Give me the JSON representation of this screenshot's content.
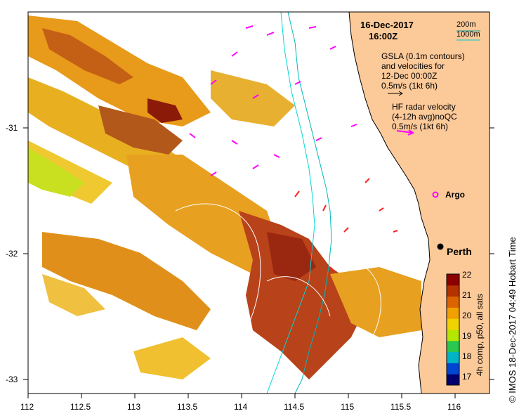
{
  "header": {
    "date": "16-Dec-2017",
    "time": "16:00Z"
  },
  "depth_legend": {
    "line1": "200m",
    "line2": "1000m",
    "color_200m": "#009999",
    "color_1000m": "#00cccc"
  },
  "gsla_legend": {
    "line1": "GSLA (0.1m contours)",
    "line2": "and velocities for",
    "line3": "12-Dec 00:00Z",
    "scale": "0.5m/s (1kt 6h)",
    "arrow_color": "#000000"
  },
  "hf_legend": {
    "line1": "HF radar velocity",
    "line2": "(4-12h avg)noQC",
    "scale": "0.5m/s (1kt 6h)",
    "arrow_color": "#ff00ff"
  },
  "places": {
    "argo": "Argo",
    "perth": "Perth"
  },
  "x_axis": {
    "ticks": [
      "112",
      "112.5",
      "113",
      "113.5",
      "114",
      "114.5",
      "115",
      "115.5",
      "116"
    ]
  },
  "y_axis": {
    "ticks": [
      "-31",
      "-32",
      "-33"
    ]
  },
  "colorbar": {
    "title": "4h comp, p50, all sats",
    "ticks": [
      "22",
      "21",
      "20",
      "19",
      "18",
      "17"
    ],
    "colors": [
      "#00006e",
      "#0046d2",
      "#00b4c8",
      "#28c850",
      "#b4e600",
      "#f0d200",
      "#f0a000",
      "#dc6400",
      "#b43200",
      "#8c0000"
    ]
  },
  "credit": "© IMOS 18-Dec-2017 04:49 Hobart Time",
  "colors": {
    "land": "#fcc999",
    "coast": "#000000",
    "frame": "#000000"
  }
}
